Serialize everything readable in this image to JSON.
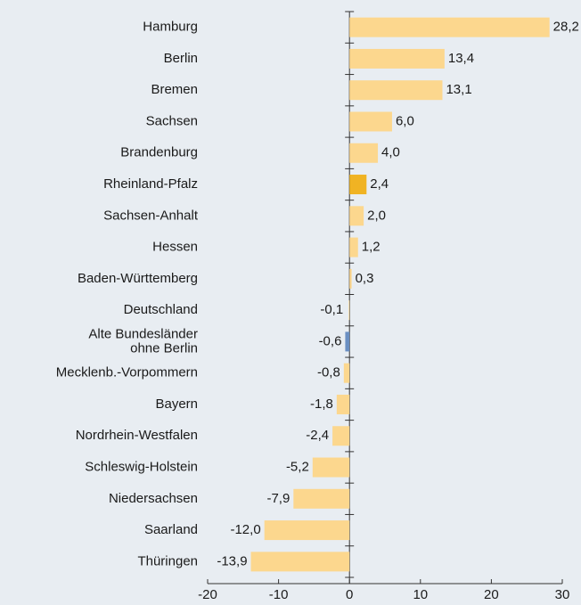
{
  "chart_data": {
    "type": "barh",
    "categories": [
      "Hamburg",
      "Berlin",
      "Bremen",
      "Sachsen",
      "Brandenburg",
      "Rheinland-Pfalz",
      "Sachsen-Anhalt",
      "Hessen",
      "Baden-Württemberg",
      "Deutschland",
      "Alte Bundesländer\nohne Berlin",
      "Mecklenb.-Vorpommern",
      "Bayern",
      "Nordrhein-Westfalen",
      "Schleswig-Holstein",
      "Niedersachsen",
      "Saarland",
      "Thüringen"
    ],
    "values": [
      28.2,
      13.4,
      13.1,
      6.0,
      4.0,
      2.4,
      2.0,
      1.2,
      0.3,
      -0.1,
      -0.6,
      -0.8,
      -1.8,
      -2.4,
      -5.2,
      -7.9,
      -12.0,
      -13.9
    ],
    "value_labels": [
      "28,2",
      "13,4",
      "13,1",
      "6,0",
      "4,0",
      "2,4",
      "2,0",
      "1,2",
      "0,3",
      "-0,1",
      "-0,6",
      "-0,8",
      "-1,8",
      "-2,4",
      "-5,2",
      "-7,9",
      "-12,0",
      "-13,9"
    ],
    "colors": [
      "#fcd78e",
      "#fcd78e",
      "#fcd78e",
      "#fcd78e",
      "#fcd78e",
      "#f0b323",
      "#fcd78e",
      "#fcd78e",
      "#fcd78e",
      "#fcd78e",
      "#6a8fc2",
      "#fcd78e",
      "#fcd78e",
      "#fcd78e",
      "#fcd78e",
      "#fcd78e",
      "#fcd78e",
      "#fcd78e"
    ],
    "xlim": [
      -20,
      30
    ],
    "xticks": [
      -20,
      -10,
      0,
      10,
      20,
      30
    ]
  }
}
